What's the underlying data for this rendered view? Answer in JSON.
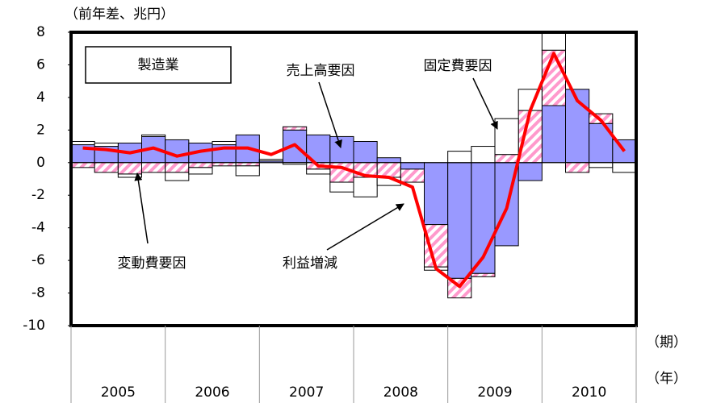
{
  "chart_data": {
    "type": "stacked-bar-line",
    "title": "製造業",
    "y_label": "（前年差、兆円）",
    "x_label_period": "（期）",
    "x_label_year": "（年）",
    "years": [
      "2005",
      "2006",
      "2007",
      "2008",
      "2009",
      "2010"
    ],
    "ylim": [
      -10,
      8
    ],
    "yticks": [
      -10,
      -8,
      -6,
      -4,
      -2,
      0,
      2,
      4,
      6,
      8
    ],
    "series": [
      {
        "name": "売上高要因",
        "color": "#9999ff",
        "kind": "bar",
        "values": [
          1.1,
          1.0,
          1.2,
          1.6,
          1.4,
          1.2,
          1.1,
          1.7,
          0.1,
          2.0,
          1.7,
          1.6,
          1.3,
          0.3,
          -0.4,
          -3.8,
          -7.1,
          -6.8,
          -5.1,
          -1.1,
          3.5,
          4.5,
          2.4,
          1.4
        ]
      },
      {
        "name": "変動費要因",
        "color": "#ff99cc",
        "kind": "bar",
        "pattern": "hatch",
        "values": [
          -0.3,
          -0.6,
          -0.7,
          -0.6,
          -0.6,
          -0.3,
          -0.2,
          -0.2,
          0.0,
          0.2,
          -0.4,
          -1.2,
          -0.9,
          -0.9,
          -0.8,
          -2.6,
          -1.2,
          -0.2,
          0.5,
          3.2,
          3.4,
          -0.6,
          0.6,
          0.0
        ]
      },
      {
        "name": "固定費要因",
        "color": "#ffffff",
        "kind": "bar",
        "values": [
          0.2,
          0.2,
          -0.2,
          0.1,
          -0.5,
          -0.4,
          0.2,
          -0.6,
          0.1,
          -0.1,
          -0.3,
          -0.6,
          -1.2,
          -0.5,
          0.0,
          -0.2,
          0.7,
          1.0,
          2.2,
          1.3,
          1.1,
          0.0,
          -0.3,
          -0.6
        ]
      },
      {
        "name": "利益増減",
        "color": "#ff0000",
        "kind": "line",
        "values": [
          0.9,
          0.8,
          0.6,
          0.9,
          0.4,
          0.7,
          0.9,
          0.9,
          0.5,
          1.1,
          -0.2,
          -0.3,
          -0.8,
          -0.9,
          -1.5,
          -6.5,
          -7.6,
          -5.8,
          -2.8,
          3.2,
          6.7,
          3.8,
          2.6,
          0.7
        ]
      }
    ]
  }
}
